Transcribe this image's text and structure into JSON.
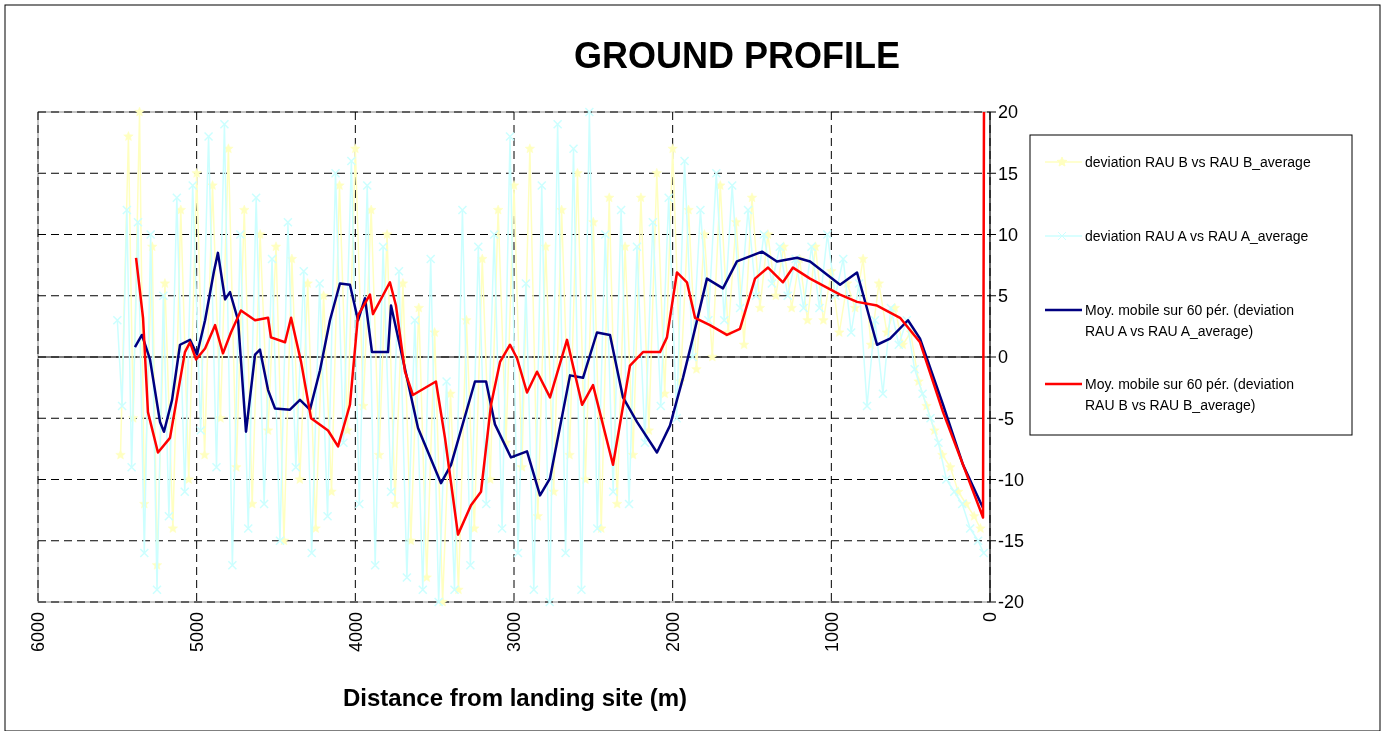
{
  "chart_data": {
    "type": "line",
    "title": "GROUND PROFILE",
    "xlabel": "Distance from landing site (m)",
    "xlim": [
      6000,
      0
    ],
    "xticks": [
      6000,
      5000,
      4000,
      3000,
      2000,
      1000,
      0
    ],
    "ylim": [
      -20,
      20
    ],
    "yticks": [
      -20,
      -15,
      -10,
      -5,
      0,
      5,
      10,
      15,
      20
    ],
    "grid": true,
    "legend": "right",
    "series": [
      {
        "name": "deviation RAU B vs RAU B_average",
        "color": "#ffffc0",
        "marker": "star",
        "x": [
          5480,
          5430,
          5400,
          5360,
          5330,
          5280,
          5250,
          5200,
          5150,
          5100,
          5050,
          5000,
          4950,
          4900,
          4850,
          4800,
          4750,
          4700,
          4650,
          4600,
          4550,
          4500,
          4450,
          4400,
          4350,
          4300,
          4250,
          4200,
          4150,
          4100,
          4050,
          4000,
          3950,
          3900,
          3850,
          3800,
          3750,
          3700,
          3650,
          3600,
          3550,
          3500,
          3450,
          3400,
          3350,
          3300,
          3250,
          3200,
          3150,
          3100,
          3050,
          3000,
          2950,
          2900,
          2850,
          2800,
          2750,
          2700,
          2650,
          2600,
          2550,
          2500,
          2450,
          2400,
          2350,
          2300,
          2250,
          2200,
          2150,
          2100,
          2050,
          2000,
          1950,
          1900,
          1850,
          1800,
          1750,
          1700,
          1650,
          1600,
          1550,
          1500,
          1450,
          1400,
          1350,
          1300,
          1250,
          1200,
          1150,
          1100,
          1050,
          1000,
          950,
          900,
          850,
          800,
          750,
          700,
          650,
          600,
          550,
          500,
          450,
          400,
          350,
          300,
          250,
          200,
          150,
          100,
          60
        ],
        "values": [
          -8,
          18,
          -5,
          20,
          -12,
          9,
          -17,
          6,
          -14,
          12,
          -10,
          15,
          -8,
          14,
          -5,
          17,
          -9,
          12,
          -12,
          10,
          -6,
          9,
          -15,
          8,
          -10,
          6,
          -14,
          5,
          -11,
          14,
          -6,
          17,
          -4,
          12,
          -8,
          10,
          -12,
          6,
          -15,
          4,
          -18,
          2,
          -20,
          -3,
          -19,
          3,
          -14,
          8,
          -10,
          12,
          -7,
          14,
          -9,
          17,
          -13,
          9,
          -11,
          12,
          -8,
          15,
          -10,
          11,
          -14,
          13,
          -12,
          9,
          -8,
          13,
          -6,
          15,
          -3,
          17,
          -2,
          12,
          -1,
          10,
          0,
          14,
          2,
          11,
          1,
          13,
          4,
          10,
          5,
          9,
          4,
          8,
          3,
          9,
          3,
          7,
          2,
          6,
          4,
          8,
          1,
          6,
          2,
          4,
          1,
          2,
          -2,
          -4,
          -6,
          -8,
          -9,
          -11,
          -12,
          -13,
          -14
        ]
      },
      {
        "name": "deviation RAU A vs RAU A_average",
        "color": "#ccffff",
        "marker": "cross",
        "x": [
          5500,
          5470,
          5440,
          5410,
          5370,
          5330,
          5290,
          5250,
          5210,
          5175,
          5125,
          5075,
          5025,
          4975,
          4925,
          4875,
          4825,
          4775,
          4725,
          4675,
          4625,
          4575,
          4525,
          4475,
          4425,
          4375,
          4325,
          4275,
          4225,
          4175,
          4125,
          4075,
          4025,
          3975,
          3925,
          3875,
          3825,
          3775,
          3725,
          3675,
          3625,
          3575,
          3525,
          3475,
          3425,
          3375,
          3325,
          3275,
          3225,
          3175,
          3125,
          3075,
          3025,
          2975,
          2925,
          2875,
          2825,
          2775,
          2725,
          2675,
          2625,
          2575,
          2525,
          2475,
          2425,
          2375,
          2325,
          2275,
          2225,
          2175,
          2125,
          2075,
          2025,
          1975,
          1925,
          1875,
          1825,
          1775,
          1725,
          1675,
          1625,
          1575,
          1525,
          1475,
          1425,
          1375,
          1325,
          1275,
          1225,
          1175,
          1125,
          1075,
          1025,
          975,
          925,
          875,
          825,
          775,
          725,
          675,
          625,
          575,
          525,
          475,
          425,
          375,
          325,
          275,
          225,
          175,
          125,
          75,
          40
        ],
        "values": [
          3,
          -4,
          12,
          -9,
          11,
          -16,
          10,
          -19,
          5,
          -13,
          13,
          -11,
          14,
          -6,
          18,
          -9,
          19,
          -17,
          10,
          -14,
          13,
          -12,
          8,
          -15,
          11,
          -9,
          7,
          -16,
          6,
          -13,
          15,
          -7,
          16,
          -12,
          14,
          -17,
          9,
          -11,
          7,
          -18,
          3,
          -19,
          8,
          -20,
          -2,
          -19,
          12,
          -17,
          9,
          -12,
          10,
          -14,
          18,
          -16,
          6,
          -19,
          14,
          -20,
          19,
          -16,
          17,
          -19,
          20,
          -14,
          10,
          -11,
          12,
          -12,
          9,
          -7,
          11,
          -4,
          13,
          -5,
          16,
          0,
          12,
          3,
          15,
          3,
          14,
          4,
          12,
          5,
          10,
          6,
          9,
          5,
          8,
          4,
          9,
          4,
          10,
          5,
          8,
          2,
          6,
          -4,
          3,
          -3,
          4,
          1,
          3,
          -1,
          -3,
          -5,
          -7,
          -10,
          -11,
          -12,
          -14,
          -15,
          -16
        ]
      },
      {
        "name": "Moy. mobile sur 60 pér. (deviation RAU A vs RAU A_average)",
        "color": "#000080",
        "marker": "none",
        "x": [
          5389,
          5345,
          5294,
          5231,
          5206,
          5155,
          5105,
          5042,
          4998,
          4947,
          4891,
          4866,
          4821,
          4790,
          4739,
          4689,
          4632,
          4601,
          4550,
          4506,
          4412,
          4349,
          4286,
          4223,
          4160,
          4097,
          4034,
          3983,
          3939,
          3895,
          3794,
          3775,
          3605,
          3460,
          3397,
          3246,
          3176,
          3120,
          3019,
          2918,
          2836,
          2773,
          2647,
          2565,
          2477,
          2395,
          2313,
          2225,
          2099,
          2017,
          1935,
          1872,
          1784,
          1683,
          1595,
          1437,
          1343,
          1216,
          1134,
          945,
          838,
          712,
          630,
          517,
          441,
          296,
          170,
          63,
          44
        ],
        "values": [
          0.8,
          1.8,
          -0.2,
          -5.3,
          -6.1,
          -3.5,
          1.0,
          1.4,
          0.2,
          3.0,
          7.0,
          8.5,
          4.7,
          5.3,
          3.0,
          -6.1,
          0.2,
          0.6,
          -2.7,
          -4.2,
          -4.3,
          -3.5,
          -4.3,
          -1.1,
          3.0,
          6.0,
          5.9,
          3.0,
          4.8,
          0.4,
          0.4,
          4.2,
          -5.8,
          -10.3,
          -8.8,
          -2.0,
          -2.0,
          -5.5,
          -8.2,
          -7.7,
          -11.3,
          -9.9,
          -1.5,
          -1.7,
          2.0,
          1.8,
          -3.3,
          -5.3,
          -7.8,
          -5.6,
          -1.7,
          1.6,
          6.4,
          5.6,
          7.8,
          8.6,
          7.8,
          8.1,
          7.8,
          5.9,
          6.9,
          1.0,
          1.5,
          3.0,
          1.5,
          -3.9,
          -8.8,
          -11.8,
          -12.3
        ]
      },
      {
        "name": "Moy. mobile sur 60 pér. (deviation RAU B vs RAU B_average)",
        "color": "#ff0000",
        "marker": "none",
        "x": [
          5382,
          5338,
          5307,
          5244,
          5168,
          5074,
          5042,
          5004,
          4947,
          4884,
          4834,
          4784,
          4721,
          4632,
          4550,
          4532,
          4443,
          4405,
          4342,
          4279,
          4172,
          4109,
          4034,
          3983,
          3908,
          3889,
          3782,
          3744,
          3687,
          3637,
          3492,
          3435,
          3353,
          3271,
          3208,
          3145,
          3088,
          3025,
          2981,
          2918,
          2855,
          2773,
          2666,
          2571,
          2502,
          2376,
          2269,
          2187,
          2080,
          2036,
          1973,
          1910,
          1859,
          1765,
          1658,
          1576,
          1481,
          1399,
          1305,
          1242,
          1134,
          945,
          838,
          712,
          567,
          441,
          296,
          170,
          44,
          38
        ],
        "values": [
          8.1,
          3.2,
          -4.5,
          -7.8,
          -6.6,
          0.4,
          1.2,
          -0.2,
          0.7,
          2.6,
          0.3,
          2.0,
          3.8,
          3.0,
          3.2,
          1.6,
          1.2,
          3.2,
          -0.4,
          -5.0,
          -6.0,
          -7.3,
          -3.9,
          3.4,
          5.1,
          3.5,
          6.1,
          4.2,
          -1.2,
          -3.1,
          -2.0,
          -6.6,
          -14.5,
          -12.1,
          -11.0,
          -3.9,
          -0.4,
          1.0,
          -0.1,
          -2.9,
          -1.2,
          -3.3,
          1.4,
          -3.9,
          -2.3,
          -8.8,
          -0.7,
          0.4,
          0.4,
          1.6,
          6.9,
          6.1,
          3.2,
          2.6,
          1.8,
          2.3,
          6.4,
          7.3,
          6.1,
          7.3,
          6.4,
          5.1,
          4.5,
          4.2,
          3.2,
          1.2,
          -4.5,
          -8.8,
          -13.1,
          20
        ]
      }
    ]
  }
}
